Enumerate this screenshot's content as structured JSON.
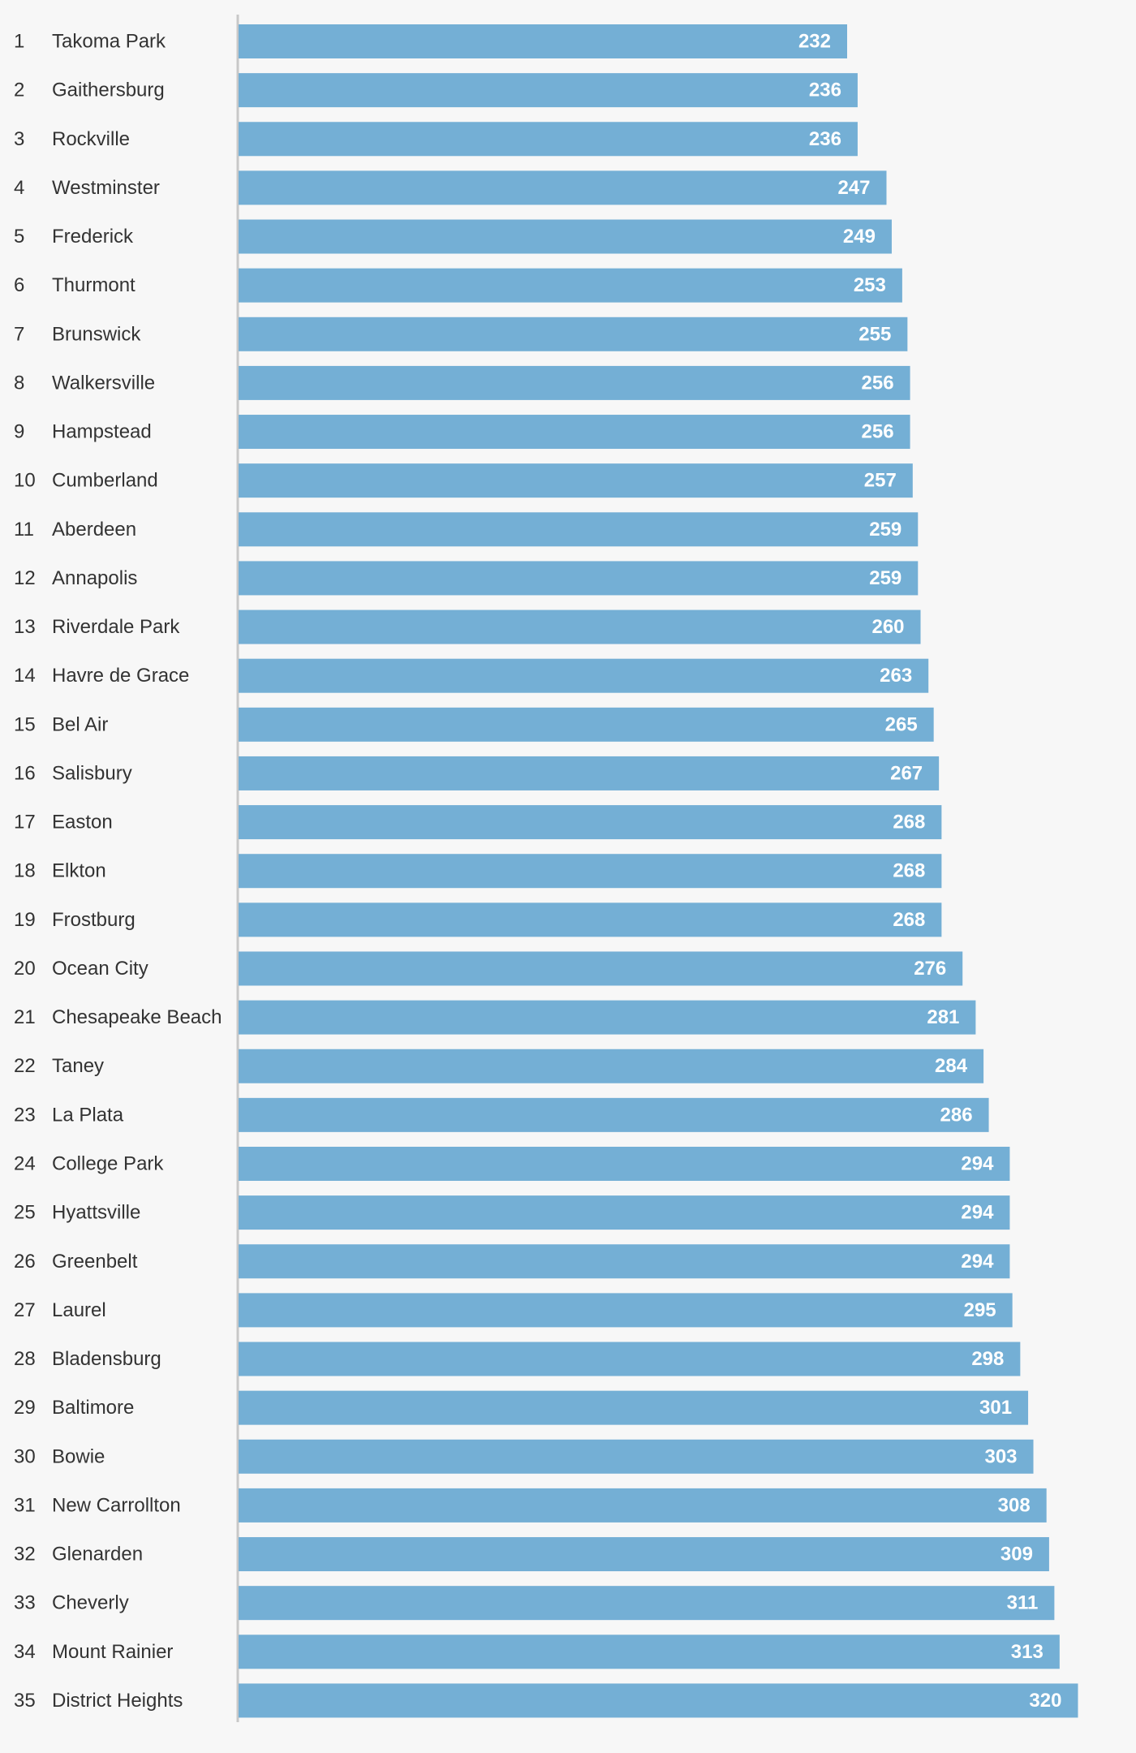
{
  "chart_data": {
    "type": "bar",
    "orientation": "horizontal",
    "title": "",
    "xlabel": "",
    "ylabel": "",
    "grid": false,
    "legend": "none",
    "colors": {
      "bar": "#74afd5",
      "bar_label": "#ffffff",
      "text": "#333333",
      "axis": "#c8c8c8",
      "background": "#f7f7f7"
    },
    "ranks": [
      "1",
      "2",
      "3",
      "4",
      "5",
      "6",
      "7",
      "8",
      "9",
      "10",
      "11",
      "12",
      "13",
      "14",
      "15",
      "16",
      "17",
      "18",
      "19",
      "20",
      "21",
      "22",
      "23",
      "24",
      "25",
      "26",
      "27",
      "28",
      "29",
      "30",
      "31",
      "32",
      "33",
      "34",
      "35"
    ],
    "categories": [
      "Takoma Park",
      "Gaithersburg",
      "Rockville",
      "Westminster",
      "Frederick",
      "Thurmont",
      "Brunswick",
      "Walkersville",
      "Hampstead",
      "Cumberland",
      "Aberdeen",
      "Annapolis",
      "Riverdale Park",
      "Havre de Grace",
      "Bel Air",
      "Salisbury",
      "Easton",
      "Elkton",
      "Frostburg",
      "Ocean City",
      "Chesapeake Beach",
      "Taney",
      "La Plata",
      "College Park",
      "Hyattsville",
      "Greenbelt",
      "Laurel",
      "Bladensburg",
      "Baltimore",
      "Bowie",
      "New Carrollton",
      "Glenarden",
      "Cheverly",
      "Mount Rainier",
      "District Heights"
    ],
    "values": [
      232,
      236,
      236,
      247,
      249,
      253,
      255,
      256,
      256,
      257,
      259,
      259,
      260,
      263,
      265,
      267,
      268,
      268,
      268,
      276,
      281,
      284,
      286,
      294,
      294,
      294,
      295,
      298,
      301,
      303,
      308,
      309,
      311,
      313,
      320
    ]
  }
}
